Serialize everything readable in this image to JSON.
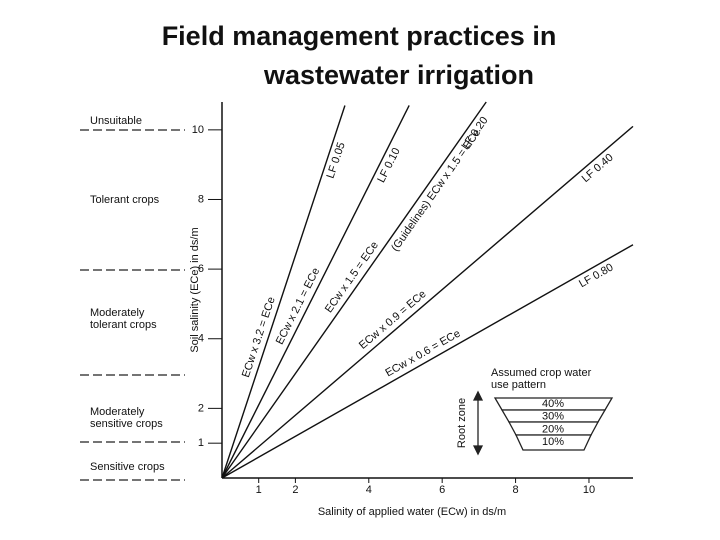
{
  "chart_data": {
    "type": "line",
    "title_lines": [
      "Field management practices in",
      "wastewater irrigation"
    ],
    "x_label": "Salinity of applied water (ECw) in ds/m",
    "y_label": "Soil salinity (ECe) in ds/m",
    "xlim": [
      0,
      11.2
    ],
    "ylim": [
      0,
      10.8
    ],
    "xticks": [
      1,
      2,
      4,
      6,
      8,
      10
    ],
    "yticks": [
      1,
      2,
      4,
      6,
      8,
      10
    ],
    "color": "#111111",
    "series": [
      {
        "name": "LF 0.05",
        "equation": "ECw x 3.2 = ECe",
        "x": [
          0,
          3.35
        ],
        "values": [
          0,
          10.7
        ]
      },
      {
        "name": "LF 0.10",
        "equation": "ECw x 2.1 = ECe",
        "x": [
          0,
          5.1
        ],
        "values": [
          0,
          10.7
        ]
      },
      {
        "name": "LF 0.20",
        "equation": "ECw x 1.5 = ECe",
        "x": [
          0,
          7.2
        ],
        "values": [
          0,
          10.8
        ]
      },
      {
        "name": "LF 0.40",
        "equation": "ECw x 0.9 = ECe",
        "x": [
          0,
          11.2
        ],
        "values": [
          0,
          10.1
        ]
      },
      {
        "name": "LF 0.80",
        "equation": "ECw x 0.6 = ECe",
        "x": [
          0,
          11.2
        ],
        "values": [
          0,
          6.7
        ]
      }
    ],
    "guideline_label": "(Guidelines) ECw x 1.5 = ECe",
    "zones": [
      [
        "Unsuitable"
      ],
      [
        "Tolerant crops"
      ],
      [
        "Moderately",
        "tolerant crops"
      ],
      [
        "Moderately",
        "sensitive crops"
      ],
      [
        "Sensitive crops"
      ]
    ],
    "inset": {
      "title_lines": [
        "Assumed crop water",
        "use pattern"
      ],
      "axis_label": "Root zone",
      "layers": [
        "40%",
        "30%",
        "20%",
        "10%"
      ]
    }
  }
}
